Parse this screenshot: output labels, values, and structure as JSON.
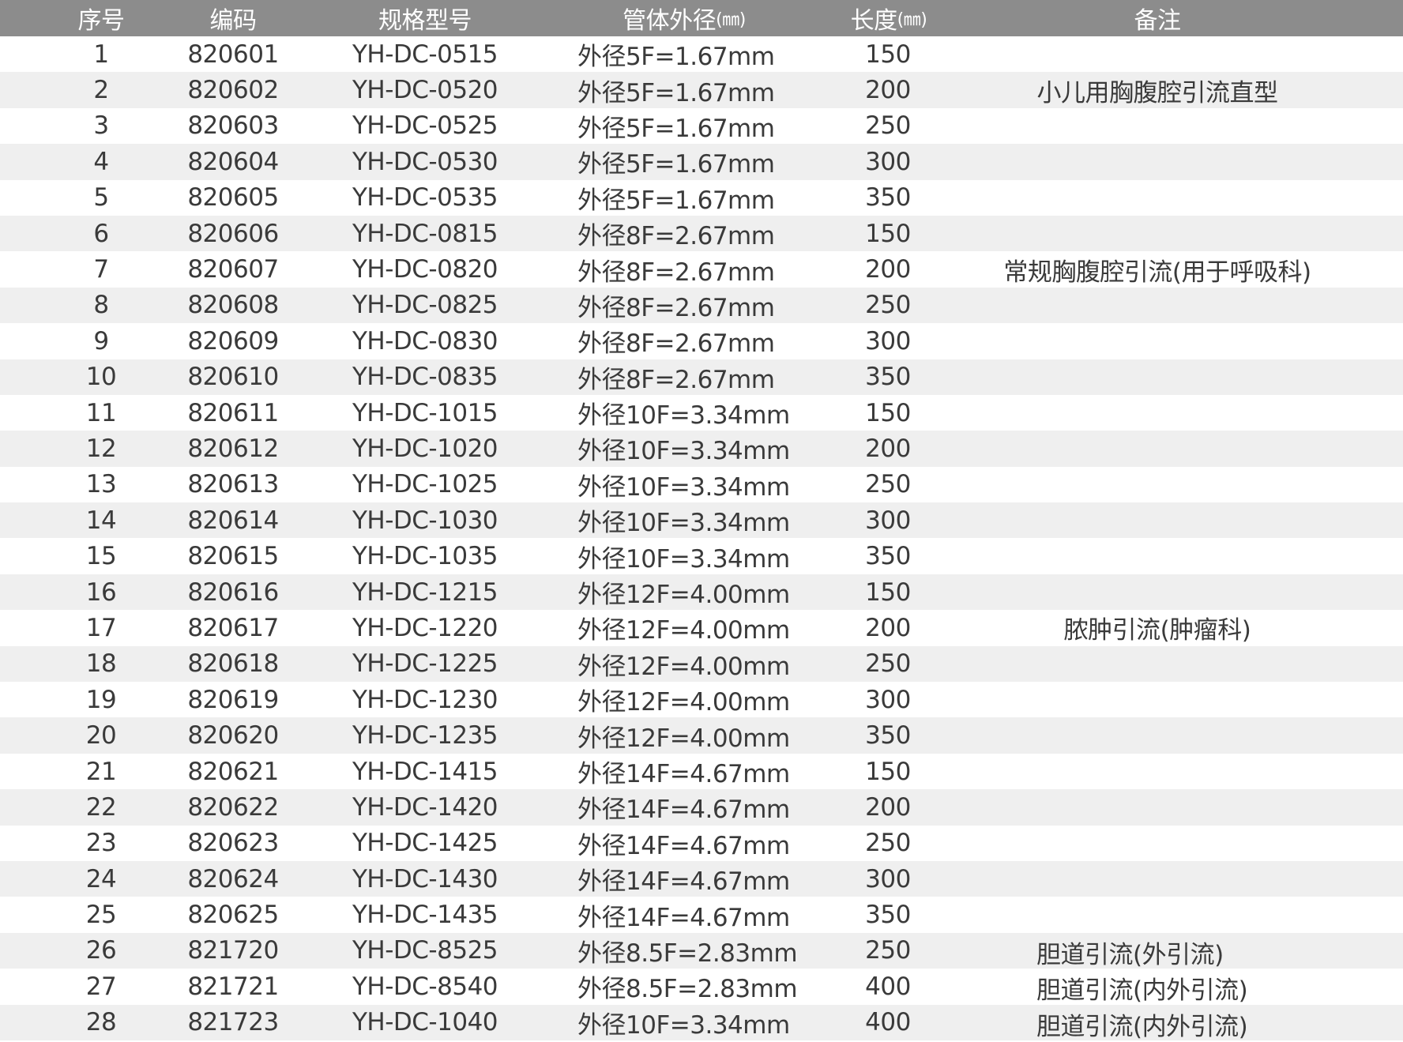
{
  "header": {
    "no": "序号",
    "code": "编码",
    "model": "规格型号",
    "diameter": "管体外径",
    "diameter_unit": "(㎜)",
    "length": "长度",
    "length_unit": "(㎜)",
    "remark": "备注"
  },
  "colors": {
    "header_bg": "#8c8c8c",
    "alt_row_bg": "#efefef"
  },
  "rows": [
    {
      "no": "1",
      "code": "820601",
      "model": "YH-DC-0515",
      "diameter": "外径5F=1.67mm",
      "length": "150",
      "remark": ""
    },
    {
      "no": "2",
      "code": "820602",
      "model": "YH-DC-0520",
      "diameter": "外径5F=1.67mm",
      "length": "200",
      "remark": "小儿用胸腹腔引流直型"
    },
    {
      "no": "3",
      "code": "820603",
      "model": "YH-DC-0525",
      "diameter": "外径5F=1.67mm",
      "length": "250",
      "remark": ""
    },
    {
      "no": "4",
      "code": "820604",
      "model": "YH-DC-0530",
      "diameter": "外径5F=1.67mm",
      "length": "300",
      "remark": ""
    },
    {
      "no": "5",
      "code": "820605",
      "model": "YH-DC-0535",
      "diameter": "外径5F=1.67mm",
      "length": "350",
      "remark": ""
    },
    {
      "no": "6",
      "code": "820606",
      "model": "YH-DC-0815",
      "diameter": "外径8F=2.67mm",
      "length": "150",
      "remark": ""
    },
    {
      "no": "7",
      "code": "820607",
      "model": "YH-DC-0820",
      "diameter": "外径8F=2.67mm",
      "length": "200",
      "remark": "常规胸腹腔引流(用于呼吸科)"
    },
    {
      "no": "8",
      "code": "820608",
      "model": "YH-DC-0825",
      "diameter": "外径8F=2.67mm",
      "length": "250",
      "remark": ""
    },
    {
      "no": "9",
      "code": "820609",
      "model": "YH-DC-0830",
      "diameter": "外径8F=2.67mm",
      "length": "300",
      "remark": ""
    },
    {
      "no": "10",
      "code": "820610",
      "model": "YH-DC-0835",
      "diameter": "外径8F=2.67mm",
      "length": "350",
      "remark": ""
    },
    {
      "no": "11",
      "code": "820611",
      "model": "YH-DC-1015",
      "diameter": "外径10F=3.34mm",
      "length": "150",
      "remark": ""
    },
    {
      "no": "12",
      "code": "820612",
      "model": "YH-DC-1020",
      "diameter": "外径10F=3.34mm",
      "length": "200",
      "remark": ""
    },
    {
      "no": "13",
      "code": "820613",
      "model": "YH-DC-1025",
      "diameter": "外径10F=3.34mm",
      "length": "250",
      "remark": ""
    },
    {
      "no": "14",
      "code": "820614",
      "model": "YH-DC-1030",
      "diameter": "外径10F=3.34mm",
      "length": "300",
      "remark": ""
    },
    {
      "no": "15",
      "code": "820615",
      "model": "YH-DC-1035",
      "diameter": "外径10F=3.34mm",
      "length": "350",
      "remark": ""
    },
    {
      "no": "16",
      "code": "820616",
      "model": "YH-DC-1215",
      "diameter": "外径12F=4.00mm",
      "length": "150",
      "remark": ""
    },
    {
      "no": "17",
      "code": "820617",
      "model": "YH-DC-1220",
      "diameter": "外径12F=4.00mm",
      "length": "200",
      "remark": "脓肿引流(肿瘤科)"
    },
    {
      "no": "18",
      "code": "820618",
      "model": "YH-DC-1225",
      "diameter": "外径12F=4.00mm",
      "length": "250",
      "remark": ""
    },
    {
      "no": "19",
      "code": "820619",
      "model": "YH-DC-1230",
      "diameter": "外径12F=4.00mm",
      "length": "300",
      "remark": ""
    },
    {
      "no": "20",
      "code": "820620",
      "model": "YH-DC-1235",
      "diameter": "外径12F=4.00mm",
      "length": "350",
      "remark": ""
    },
    {
      "no": "21",
      "code": "820621",
      "model": "YH-DC-1415",
      "diameter": "外径14F=4.67mm",
      "length": "150",
      "remark": ""
    },
    {
      "no": "22",
      "code": "820622",
      "model": "YH-DC-1420",
      "diameter": "外径14F=4.67mm",
      "length": "200",
      "remark": ""
    },
    {
      "no": "23",
      "code": "820623",
      "model": "YH-DC-1425",
      "diameter": "外径14F=4.67mm",
      "length": "250",
      "remark": ""
    },
    {
      "no": "24",
      "code": "820624",
      "model": "YH-DC-1430",
      "diameter": "外径14F=4.67mm",
      "length": "300",
      "remark": ""
    },
    {
      "no": "25",
      "code": "820625",
      "model": "YH-DC-1435",
      "diameter": "外径14F=4.67mm",
      "length": "350",
      "remark": ""
    },
    {
      "no": "26",
      "code": "821720",
      "model": "YH-DC-8525",
      "diameter": "外径8.5F=2.83mm",
      "length": "250",
      "remark": "胆道引流(外引流)",
      "remark_left": true
    },
    {
      "no": "27",
      "code": "821721",
      "model": "YH-DC-8540",
      "diameter": "外径8.5F=2.83mm",
      "length": "400",
      "remark": "胆道引流(内外引流)",
      "remark_left": true
    },
    {
      "no": "28",
      "code": "821723",
      "model": "YH-DC-1040",
      "diameter": "外径10F=3.34mm",
      "length": "400",
      "remark": "胆道引流(内外引流)",
      "remark_left": true
    }
  ]
}
